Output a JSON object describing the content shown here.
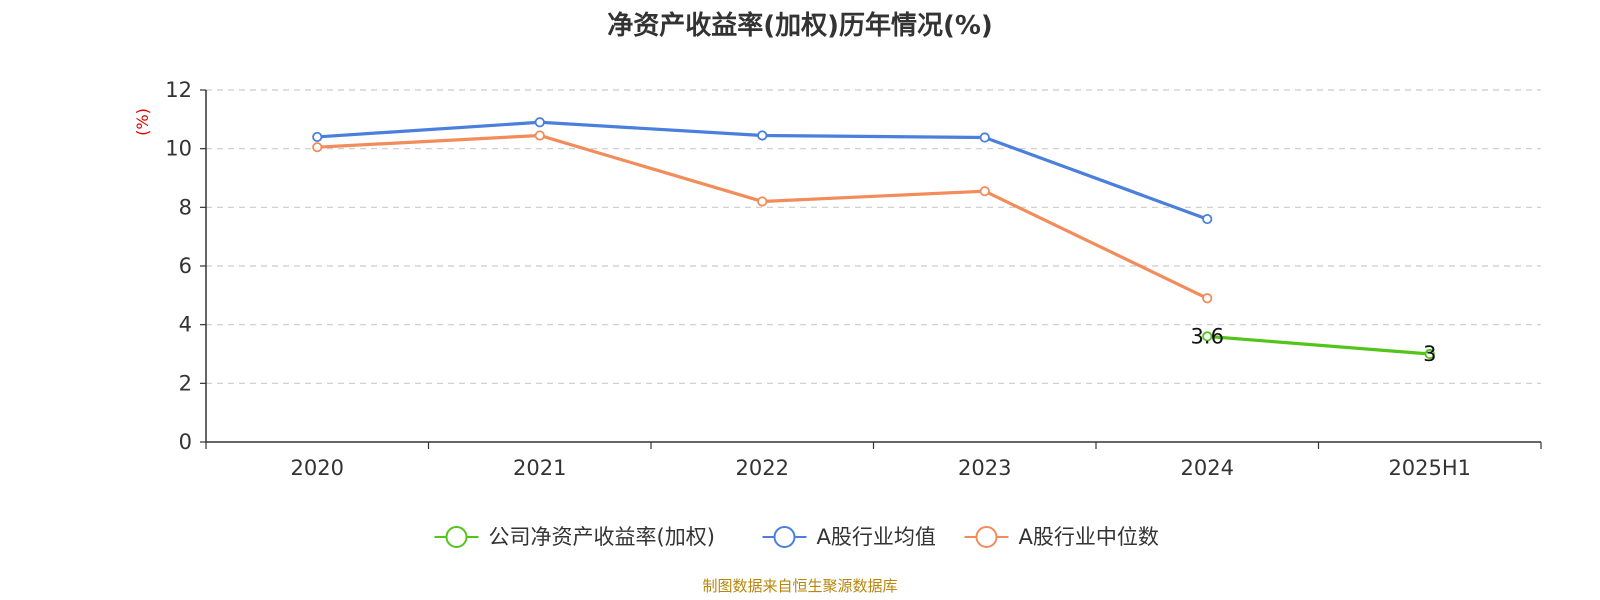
{
  "chart_data": {
    "type": "line",
    "title": "净资产收益率(加权)历年情况(%)",
    "ylabel": "(%)",
    "xlabel": "",
    "categories": [
      "2020",
      "2021",
      "2022",
      "2023",
      "2024",
      "2025H1"
    ],
    "ylim": [
      0,
      12
    ],
    "yticks": [
      0,
      2,
      4,
      6,
      8,
      10,
      12
    ],
    "grid": true,
    "legend_position": "bottom",
    "series": [
      {
        "name": "公司净资产收益率(加权)",
        "color": "#52c41a",
        "values": [
          null,
          null,
          null,
          null,
          3.6,
          3.0
        ],
        "labels": [
          null,
          null,
          null,
          null,
          "3.6",
          "3"
        ]
      },
      {
        "name": "A股行业均值",
        "color": "#4a7fdc",
        "values": [
          10.4,
          10.9,
          10.45,
          10.38,
          7.6,
          null
        ]
      },
      {
        "name": "A股行业中位数",
        "color": "#f28c5a",
        "values": [
          10.05,
          10.45,
          8.2,
          8.55,
          4.9,
          null
        ]
      }
    ]
  },
  "footer": {
    "source": "制图数据来自恒生聚源数据库"
  }
}
